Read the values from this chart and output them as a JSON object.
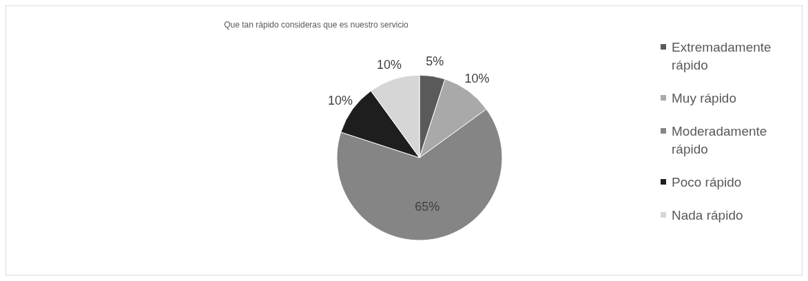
{
  "chart_data": {
    "type": "pie",
    "title": "Que tan rápido consideras que es nuestro servicio",
    "categories": [
      "Extremadamente rápido",
      "Muy rápido",
      "Moderadamente rápido",
      "Poco rápido",
      "Nada rápido"
    ],
    "values": [
      5,
      10,
      65,
      10,
      10
    ],
    "colors": [
      "#5a5a5a",
      "#a9a9a9",
      "#858585",
      "#1e1e1e",
      "#d6d6d6"
    ],
    "value_labels": [
      "5%",
      "10%",
      "65%",
      "10%",
      "10%"
    ],
    "legend": "right"
  }
}
